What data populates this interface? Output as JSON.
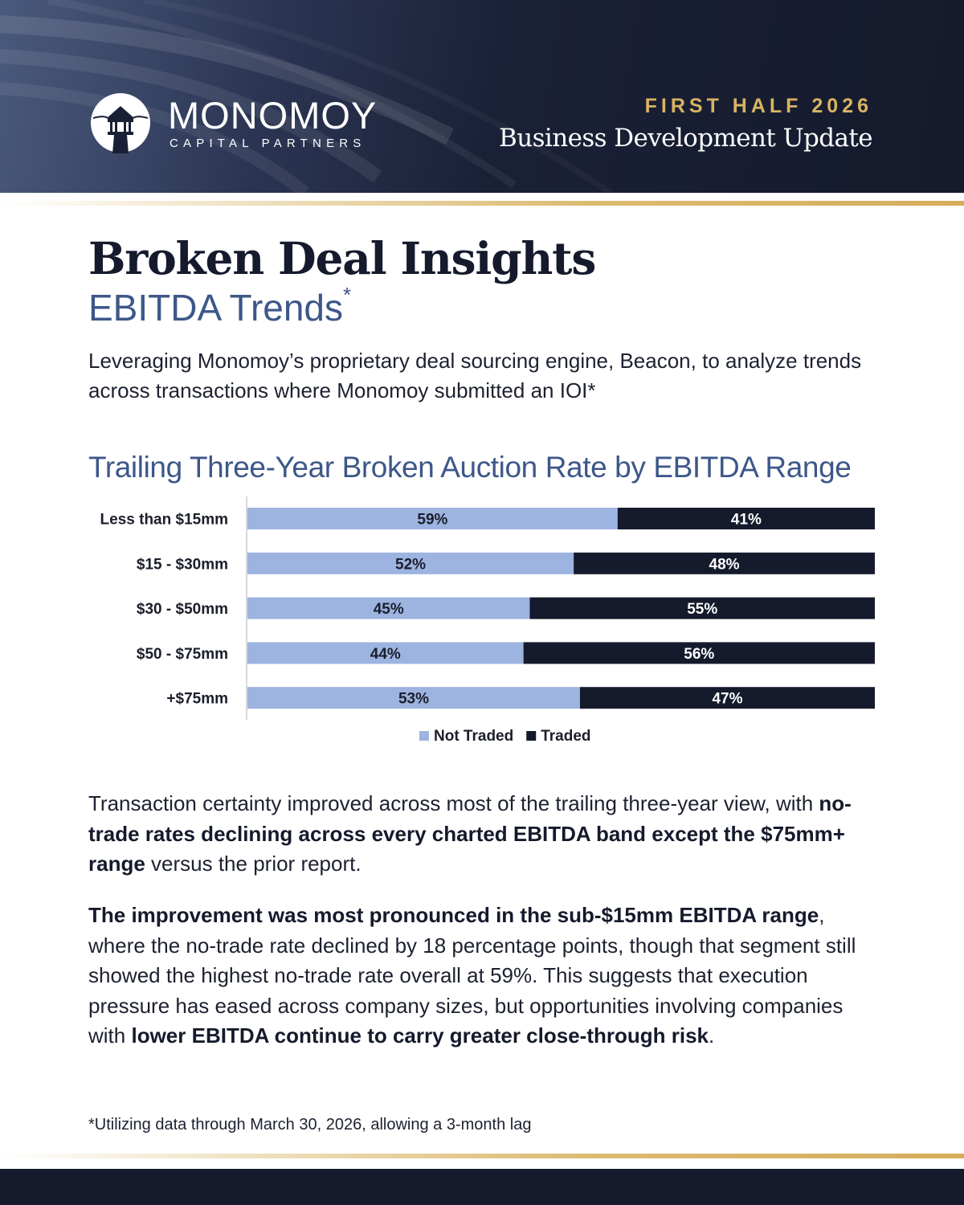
{
  "header": {
    "brand_name": "MONOMOY",
    "brand_sub": "CAPITAL PARTNERS",
    "kicker": "FIRST HALF 2026",
    "title": "Business Development Update"
  },
  "page": {
    "title": "Broken Deal Insights",
    "subtitle": "EBITDA Trends",
    "subtitle_mark": "*",
    "intro": "Leveraging Monomoy’s proprietary deal sourcing engine, Beacon, to analyze trends across transactions where Monomoy submitted an IOI*"
  },
  "chart_title": "Trailing Three-Year Broken Auction Rate by EBITDA Range",
  "chart_data": {
    "type": "bar",
    "orientation": "horizontal",
    "stacked": true,
    "unit": "%",
    "categories": [
      "Less than $15mm",
      "$15 - $30mm",
      "$30 - $50mm",
      "$50 - $75mm",
      "+$75mm"
    ],
    "series": [
      {
        "name": "Not Traded",
        "values": [
          59,
          52,
          45,
          44,
          53
        ],
        "color": "#9db3e0"
      },
      {
        "name": "Traded",
        "values": [
          41,
          48,
          55,
          56,
          47
        ],
        "color": "#151a2c"
      }
    ],
    "xlim": [
      0,
      100
    ],
    "grid": false,
    "legend": "bottom-center"
  },
  "paragraphs": [
    {
      "segments": [
        {
          "text": "Transaction certainty improved across most of the trailing three-year view, with ",
          "bold": false
        },
        {
          "text": "no-trade rates declining across every charted EBITDA band except the $75mm+ range",
          "bold": true
        },
        {
          "text": " versus the prior report.",
          "bold": false
        }
      ]
    },
    {
      "segments": [
        {
          "text": "The improvement was most pronounced in the sub-$15mm EBITDA range",
          "bold": true
        },
        {
          "text": ", where the no-trade rate declined by 18 percentage points, though that segment still showed the highest no-trade rate overall at 59%. This suggests that execution pressure has eased across company sizes, but opportunities involving companies with ",
          "bold": false
        },
        {
          "text": "lower EBITDA continue to carry greater close-through risk",
          "bold": true
        },
        {
          "text": ".",
          "bold": false
        }
      ]
    }
  ],
  "footnote": "*Utilizing data through March 30, 2026, allowing a 3-month lag",
  "colors": {
    "navy": "#151a2c",
    "gold": "#d8b463",
    "accent_blue": "#3d5789",
    "bar_light": "#9db3e0"
  }
}
